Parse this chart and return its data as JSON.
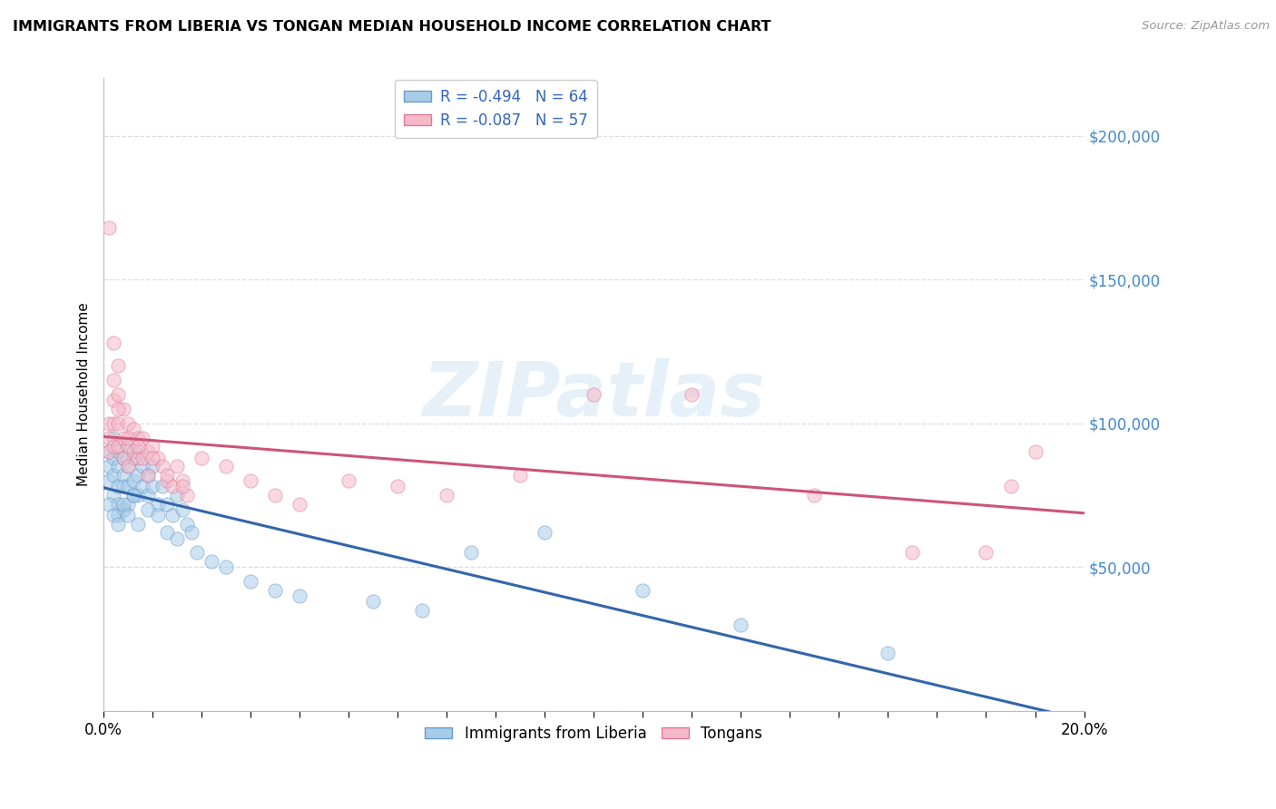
{
  "title": "IMMIGRANTS FROM LIBERIA VS TONGAN MEDIAN HOUSEHOLD INCOME CORRELATION CHART",
  "source": "Source: ZipAtlas.com",
  "ylabel": "Median Household Income",
  "xlim": [
    0.0,
    0.2
  ],
  "ylim": [
    0,
    220000
  ],
  "ytick_positions": [
    0,
    50000,
    100000,
    150000,
    200000
  ],
  "ytick_labels": [
    "",
    "$50,000",
    "$100,000",
    "$150,000",
    "$200,000"
  ],
  "legend_entries": [
    {
      "label": "R = -0.494   N = 64"
    },
    {
      "label": "R = -0.087   N = 57"
    }
  ],
  "legend_bottom": [
    "Immigrants from Liberia",
    "Tongans"
  ],
  "scatter_blue_color": "#a8cce8",
  "scatter_blue_edge": "#6699cc",
  "scatter_pink_color": "#f5b8c8",
  "scatter_pink_edge": "#e07898",
  "trendline_blue_color": "#3366aa",
  "trendline_pink_color": "#cc5577",
  "trendline_linewidth": 2.2,
  "watermark": "ZIPatlas",
  "background_color": "#ffffff",
  "grid_color": "#dddddd",
  "ytick_color": "#4488cc",
  "legend_label_color": "#3366bb",
  "scatter_size": 120,
  "scatter_alpha": 0.55,
  "blue_x": [
    0.001,
    0.001,
    0.001,
    0.002,
    0.002,
    0.002,
    0.002,
    0.003,
    0.003,
    0.003,
    0.003,
    0.003,
    0.004,
    0.004,
    0.004,
    0.004,
    0.005,
    0.005,
    0.005,
    0.005,
    0.006,
    0.006,
    0.006,
    0.007,
    0.007,
    0.007,
    0.008,
    0.008,
    0.009,
    0.009,
    0.01,
    0.01,
    0.011,
    0.012,
    0.013,
    0.014,
    0.015,
    0.016,
    0.017,
    0.018,
    0.001,
    0.002,
    0.003,
    0.004,
    0.005,
    0.006,
    0.007,
    0.009,
    0.011,
    0.013,
    0.015,
    0.019,
    0.022,
    0.025,
    0.03,
    0.035,
    0.04,
    0.055,
    0.065,
    0.075,
    0.09,
    0.11,
    0.13,
    0.16
  ],
  "blue_y": [
    90000,
    85000,
    80000,
    95000,
    88000,
    82000,
    75000,
    90000,
    85000,
    78000,
    72000,
    68000,
    88000,
    82000,
    78000,
    70000,
    92000,
    85000,
    78000,
    72000,
    88000,
    80000,
    75000,
    90000,
    82000,
    75000,
    85000,
    78000,
    82000,
    75000,
    85000,
    78000,
    72000,
    78000,
    72000,
    68000,
    75000,
    70000,
    65000,
    62000,
    72000,
    68000,
    65000,
    72000,
    68000,
    75000,
    65000,
    70000,
    68000,
    62000,
    60000,
    55000,
    52000,
    50000,
    45000,
    42000,
    40000,
    38000,
    35000,
    55000,
    62000,
    42000,
    30000,
    20000
  ],
  "pink_x": [
    0.001,
    0.001,
    0.001,
    0.001,
    0.002,
    0.002,
    0.002,
    0.002,
    0.003,
    0.003,
    0.003,
    0.003,
    0.004,
    0.004,
    0.004,
    0.005,
    0.005,
    0.005,
    0.006,
    0.006,
    0.007,
    0.007,
    0.008,
    0.008,
    0.009,
    0.009,
    0.01,
    0.011,
    0.012,
    0.013,
    0.014,
    0.015,
    0.016,
    0.017,
    0.002,
    0.003,
    0.005,
    0.007,
    0.01,
    0.013,
    0.016,
    0.02,
    0.025,
    0.03,
    0.035,
    0.04,
    0.05,
    0.06,
    0.07,
    0.085,
    0.1,
    0.12,
    0.145,
    0.165,
    0.18,
    0.185,
    0.19
  ],
  "pink_y": [
    168000,
    100000,
    95000,
    90000,
    115000,
    108000,
    100000,
    92000,
    120000,
    110000,
    100000,
    92000,
    105000,
    95000,
    88000,
    100000,
    92000,
    85000,
    98000,
    90000,
    95000,
    88000,
    95000,
    88000,
    90000,
    82000,
    92000,
    88000,
    85000,
    80000,
    78000,
    85000,
    80000,
    75000,
    128000,
    105000,
    95000,
    92000,
    88000,
    82000,
    78000,
    88000,
    85000,
    80000,
    75000,
    72000,
    80000,
    78000,
    75000,
    82000,
    110000,
    110000,
    75000,
    55000,
    55000,
    78000,
    90000
  ]
}
